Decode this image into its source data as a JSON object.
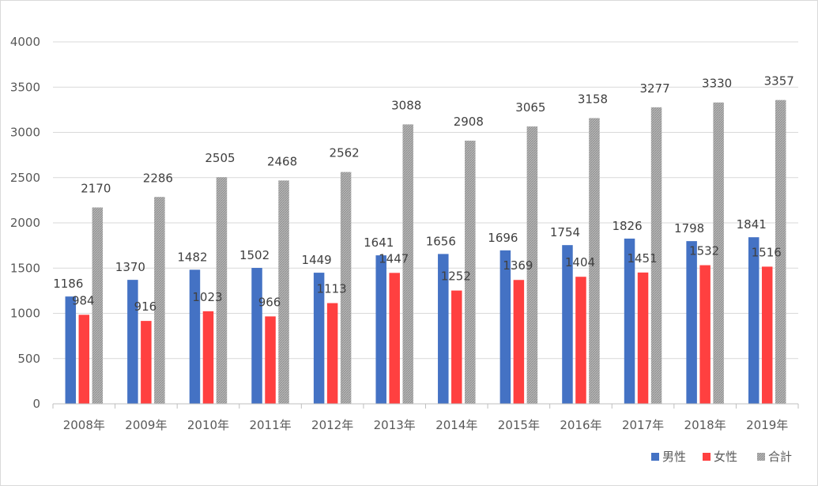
{
  "chart_data": {
    "type": "bar",
    "title": "",
    "xlabel": "",
    "ylabel": "",
    "ylim": [
      0,
      4000
    ],
    "yticks": [
      0,
      500,
      1000,
      1500,
      2000,
      2500,
      3000,
      3500,
      4000
    ],
    "grid": true,
    "legend_position": "bottom-right",
    "categories": [
      "2008年",
      "2009年",
      "2010年",
      "2011年",
      "2012年",
      "2013年",
      "2014年",
      "2015年",
      "2016年",
      "2017年",
      "2018年",
      "2019年"
    ],
    "series": [
      {
        "name": "男性",
        "color": "#4472c4",
        "pattern": "solid",
        "values": [
          1186,
          1370,
          1482,
          1502,
          1449,
          1641,
          1656,
          1696,
          1754,
          1826,
          1798,
          1841
        ]
      },
      {
        "name": "女性",
        "color": "#ff4040",
        "pattern": "solid",
        "values": [
          984,
          916,
          1023,
          966,
          1113,
          1447,
          1252,
          1369,
          1404,
          1451,
          1532,
          1516
        ]
      },
      {
        "name": "合計",
        "color": "#a5a5a5",
        "pattern": "hatched",
        "values": [
          2170,
          2286,
          2505,
          2468,
          2562,
          3088,
          2908,
          3065,
          3158,
          3277,
          3330,
          3357
        ]
      }
    ]
  }
}
